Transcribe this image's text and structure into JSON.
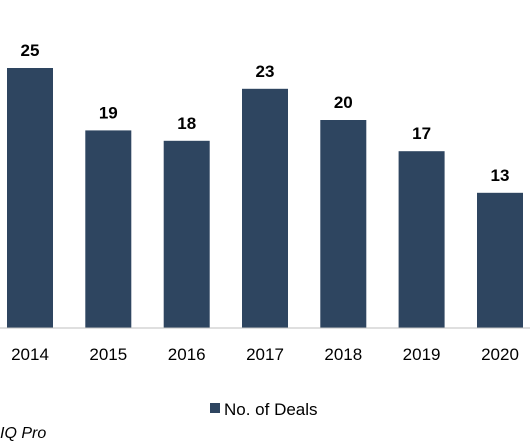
{
  "chart_data": {
    "type": "bar",
    "categories": [
      "2014",
      "2015",
      "2016",
      "2017",
      "2018",
      "2019",
      "2020"
    ],
    "series": [
      {
        "name": "No. of Deals",
        "values": [
          25,
          19,
          18,
          23,
          20,
          17,
          13
        ],
        "color": "#2e4560"
      }
    ],
    "data_labels": [
      "25",
      "19",
      "18",
      "23",
      "20",
      "17",
      "13"
    ],
    "ylim": [
      0,
      25
    ],
    "grid": false,
    "y_axis_visible": false,
    "legend_position": "bottom-center"
  },
  "source_text": "IQ Pro",
  "colors": {
    "bar": "#2e4560",
    "axis": "#bfbfbf",
    "text": "#000000"
  }
}
